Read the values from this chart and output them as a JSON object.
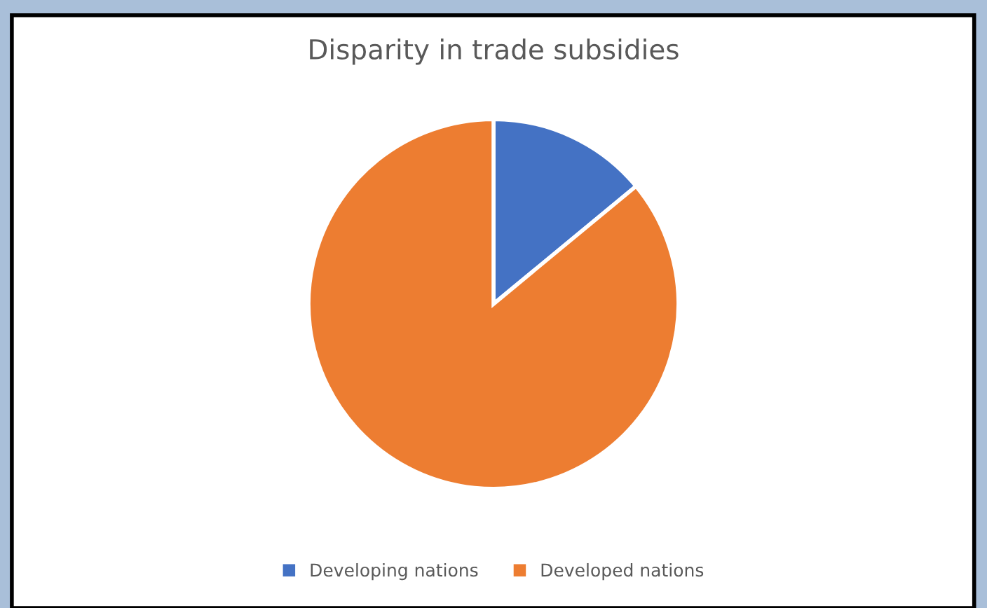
{
  "chart_data": {
    "type": "pie",
    "title": "Disparity in trade subsidies",
    "categories": [
      "Developing nations",
      "Developed nations"
    ],
    "values": [
      14,
      86
    ],
    "colors": [
      "#4472c4",
      "#ed7d31"
    ],
    "legend": "bottom"
  }
}
